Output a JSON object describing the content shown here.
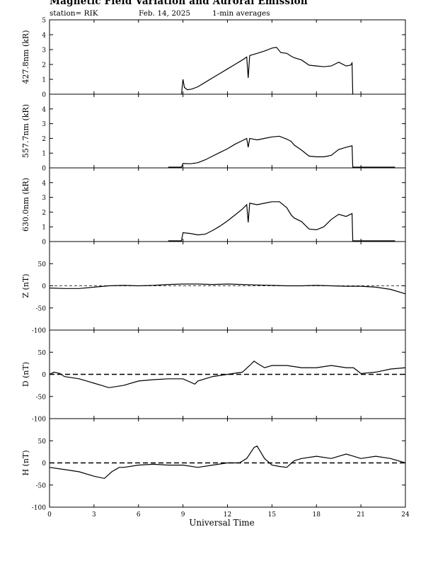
{
  "header": {
    "title": "Magnetic Field Variation and Auroral Emission",
    "station": "station= RIK",
    "date": "Feb. 14, 2025",
    "averaging": "1-min averages"
  },
  "chart_data": {
    "type": "line",
    "x_label": "Universal Time",
    "x_range": [
      0,
      24
    ],
    "x_ticks": [
      0,
      3,
      6,
      9,
      12,
      15,
      18,
      21,
      24
    ],
    "panels": [
      {
        "ylabel": "427.8nm (kR)",
        "ylim": [
          0,
          5
        ],
        "yticks": [
          0,
          1,
          2,
          3,
          4,
          5
        ],
        "dashed_zero": false,
        "data": [
          [
            8.9,
            0
          ],
          [
            9.0,
            1.0
          ],
          [
            9.1,
            0.45
          ],
          [
            9.3,
            0.3
          ],
          [
            9.6,
            0.35
          ],
          [
            10.0,
            0.5
          ],
          [
            10.5,
            0.8
          ],
          [
            11.0,
            1.1
          ],
          [
            11.5,
            1.4
          ],
          [
            12.0,
            1.7
          ],
          [
            12.5,
            2.0
          ],
          [
            13.0,
            2.3
          ],
          [
            13.3,
            2.5
          ],
          [
            13.4,
            1.1
          ],
          [
            13.5,
            2.6
          ],
          [
            14.0,
            2.75
          ],
          [
            14.5,
            2.9
          ],
          [
            15.0,
            3.1
          ],
          [
            15.3,
            3.15
          ],
          [
            15.6,
            2.8
          ],
          [
            16.0,
            2.75
          ],
          [
            16.3,
            2.55
          ],
          [
            16.5,
            2.45
          ],
          [
            17.0,
            2.3
          ],
          [
            17.5,
            1.95
          ],
          [
            18.0,
            1.9
          ],
          [
            18.5,
            1.85
          ],
          [
            19.0,
            1.9
          ],
          [
            19.5,
            2.15
          ],
          [
            20.0,
            1.9
          ],
          [
            20.3,
            1.95
          ],
          [
            20.4,
            2.1
          ],
          [
            20.45,
            0
          ]
        ]
      },
      {
        "ylabel": "557.7nm (kR)",
        "ylim": [
          0,
          5
        ],
        "yticks": [
          0,
          1,
          2,
          3,
          4
        ],
        "dashed_zero": false,
        "data": [
          [
            8.0,
            0.05
          ],
          [
            8.9,
            0.05
          ],
          [
            9.0,
            0.3
          ],
          [
            9.5,
            0.28
          ],
          [
            10.0,
            0.35
          ],
          [
            10.5,
            0.55
          ],
          [
            11.0,
            0.8
          ],
          [
            11.5,
            1.05
          ],
          [
            12.0,
            1.3
          ],
          [
            12.5,
            1.6
          ],
          [
            13.0,
            1.85
          ],
          [
            13.3,
            2.0
          ],
          [
            13.4,
            1.4
          ],
          [
            13.5,
            2.0
          ],
          [
            14.0,
            1.9
          ],
          [
            14.5,
            2.0
          ],
          [
            15.0,
            2.1
          ],
          [
            15.5,
            2.15
          ],
          [
            16.0,
            1.95
          ],
          [
            16.3,
            1.8
          ],
          [
            16.5,
            1.55
          ],
          [
            17.0,
            1.2
          ],
          [
            17.5,
            0.8
          ],
          [
            18.0,
            0.75
          ],
          [
            18.5,
            0.75
          ],
          [
            19.0,
            0.85
          ],
          [
            19.5,
            1.25
          ],
          [
            20.0,
            1.4
          ],
          [
            20.4,
            1.5
          ],
          [
            20.45,
            0.05
          ],
          [
            23.3,
            0.05
          ]
        ]
      },
      {
        "ylabel": "630.0nm (kR)",
        "ylim": [
          0,
          5
        ],
        "yticks": [
          0,
          1,
          2,
          3,
          4
        ],
        "dashed_zero": false,
        "data": [
          [
            8.0,
            0.05
          ],
          [
            8.9,
            0.05
          ],
          [
            9.0,
            0.6
          ],
          [
            9.5,
            0.55
          ],
          [
            10.0,
            0.45
          ],
          [
            10.5,
            0.5
          ],
          [
            11.0,
            0.75
          ],
          [
            11.5,
            1.05
          ],
          [
            12.0,
            1.4
          ],
          [
            12.5,
            1.8
          ],
          [
            13.0,
            2.2
          ],
          [
            13.3,
            2.5
          ],
          [
            13.4,
            1.3
          ],
          [
            13.5,
            2.6
          ],
          [
            14.0,
            2.5
          ],
          [
            14.5,
            2.6
          ],
          [
            15.0,
            2.7
          ],
          [
            15.5,
            2.7
          ],
          [
            16.0,
            2.3
          ],
          [
            16.3,
            1.8
          ],
          [
            16.5,
            1.6
          ],
          [
            17.0,
            1.35
          ],
          [
            17.5,
            0.85
          ],
          [
            18.0,
            0.8
          ],
          [
            18.5,
            1.0
          ],
          [
            19.0,
            1.5
          ],
          [
            19.5,
            1.85
          ],
          [
            20.0,
            1.7
          ],
          [
            20.4,
            1.9
          ],
          [
            20.45,
            0.05
          ],
          [
            23.3,
            0.05
          ]
        ]
      },
      {
        "ylabel": "Z (nT)",
        "ylim": [
          -100,
          100
        ],
        "yticks": [
          -100,
          -50,
          0,
          50
        ],
        "dashed_zero": true,
        "data": [
          [
            0,
            -5
          ],
          [
            1,
            -6
          ],
          [
            2,
            -6
          ],
          [
            3,
            -3
          ],
          [
            4,
            0
          ],
          [
            5,
            1
          ],
          [
            6,
            0
          ],
          [
            7,
            1
          ],
          [
            8,
            3
          ],
          [
            9,
            4
          ],
          [
            10,
            4
          ],
          [
            11,
            3
          ],
          [
            12,
            4
          ],
          [
            13,
            3
          ],
          [
            14,
            2
          ],
          [
            15,
            1
          ],
          [
            16,
            0
          ],
          [
            17,
            0
          ],
          [
            18,
            1
          ],
          [
            19,
            0
          ],
          [
            20,
            -1
          ],
          [
            21,
            -1
          ],
          [
            22,
            -3
          ],
          [
            23,
            -8
          ],
          [
            24,
            -18
          ]
        ]
      },
      {
        "ylabel": "D (nT)",
        "ylim": [
          -100,
          100
        ],
        "yticks": [
          -100,
          -50,
          0,
          50
        ],
        "dashed_zero": true,
        "data": [
          [
            0,
            0
          ],
          [
            0.3,
            5
          ],
          [
            0.7,
            2
          ],
          [
            1,
            -5
          ],
          [
            2,
            -10
          ],
          [
            3,
            -20
          ],
          [
            3.5,
            -25
          ],
          [
            4,
            -30
          ],
          [
            5,
            -25
          ],
          [
            6,
            -15
          ],
          [
            7,
            -12
          ],
          [
            8,
            -10
          ],
          [
            9,
            -10
          ],
          [
            9.8,
            -22
          ],
          [
            10,
            -15
          ],
          [
            11,
            -5
          ],
          [
            12,
            0
          ],
          [
            13,
            5
          ],
          [
            13.5,
            20
          ],
          [
            13.8,
            30
          ],
          [
            14,
            25
          ],
          [
            14.5,
            15
          ],
          [
            15,
            20
          ],
          [
            16,
            20
          ],
          [
            17,
            15
          ],
          [
            18,
            15
          ],
          [
            19,
            20
          ],
          [
            20,
            15
          ],
          [
            20.5,
            15
          ],
          [
            21,
            2
          ],
          [
            22,
            5
          ],
          [
            23,
            12
          ],
          [
            24,
            15
          ]
        ]
      },
      {
        "ylabel": "H (nT)",
        "ylim": [
          -100,
          100
        ],
        "yticks": [
          -100,
          -50,
          0,
          50
        ],
        "dashed_zero": true,
        "data": [
          [
            0,
            -10
          ],
          [
            1,
            -15
          ],
          [
            2,
            -20
          ],
          [
            3,
            -30
          ],
          [
            3.7,
            -35
          ],
          [
            4.2,
            -20
          ],
          [
            4.7,
            -10
          ],
          [
            5,
            -10
          ],
          [
            6,
            -5
          ],
          [
            7,
            -3
          ],
          [
            8,
            -5
          ],
          [
            9,
            -5
          ],
          [
            10,
            -10
          ],
          [
            11,
            -5
          ],
          [
            12,
            0
          ],
          [
            12.8,
            0
          ],
          [
            13.3,
            10
          ],
          [
            13.8,
            35
          ],
          [
            14,
            38
          ],
          [
            14.5,
            10
          ],
          [
            15,
            -5
          ],
          [
            15.5,
            -8
          ],
          [
            16,
            -10
          ],
          [
            16.5,
            5
          ],
          [
            17,
            10
          ],
          [
            18,
            15
          ],
          [
            19,
            10
          ],
          [
            20,
            20
          ],
          [
            20.5,
            15
          ],
          [
            21,
            10
          ],
          [
            22,
            15
          ],
          [
            23,
            10
          ],
          [
            24,
            0
          ]
        ]
      }
    ]
  }
}
